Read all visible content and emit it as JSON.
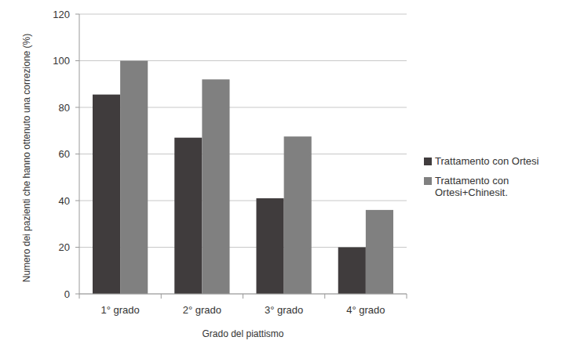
{
  "chart_data": {
    "type": "bar",
    "x_label": "Grado del piattismo",
    "y_label": "Numero dei pazienti che hanno ottenuto una correzione (%)",
    "categories": [
      "1° grado",
      "2° grado",
      "3° grado",
      "4° grado"
    ],
    "series": [
      {
        "name": "Trattamento con Ortesi",
        "color": "#403c3d",
        "values": [
          85.5,
          67,
          41,
          20
        ]
      },
      {
        "name": "Trattamento con Ortesi+Chinesit.",
        "color": "#808080",
        "values": [
          100,
          92,
          67.5,
          36
        ]
      }
    ],
    "ylim": [
      0,
      120
    ],
    "yticks": [
      0,
      20,
      40,
      60,
      80,
      100,
      120
    ],
    "grid": true,
    "legend": "right"
  }
}
